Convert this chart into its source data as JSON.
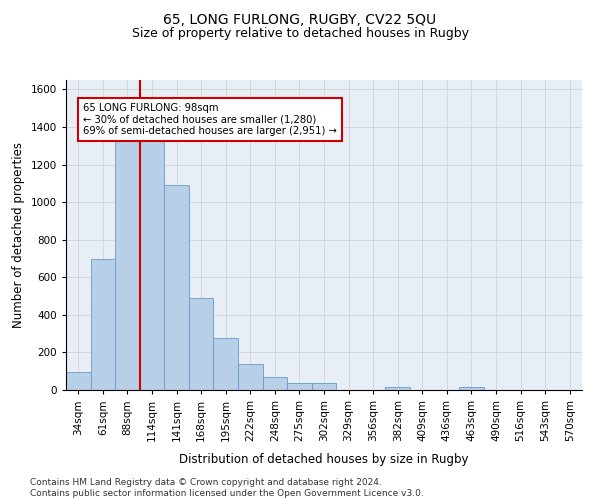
{
  "title": "65, LONG FURLONG, RUGBY, CV22 5QU",
  "subtitle": "Size of property relative to detached houses in Rugby",
  "xlabel": "Distribution of detached houses by size in Rugby",
  "ylabel": "Number of detached properties",
  "footer": "Contains HM Land Registry data © Crown copyright and database right 2024.\nContains public sector information licensed under the Open Government Licence v3.0.",
  "bar_labels": [
    "34sqm",
    "61sqm",
    "88sqm",
    "114sqm",
    "141sqm",
    "168sqm",
    "195sqm",
    "222sqm",
    "248sqm",
    "275sqm",
    "302sqm",
    "329sqm",
    "356sqm",
    "382sqm",
    "409sqm",
    "436sqm",
    "463sqm",
    "490sqm",
    "516sqm",
    "543sqm",
    "570sqm"
  ],
  "bar_values": [
    97,
    697,
    1325,
    1325,
    1093,
    490,
    275,
    137,
    70,
    35,
    35,
    0,
    0,
    17,
    0,
    0,
    17,
    0,
    0,
    0,
    0
  ],
  "bar_color": "#b8cfe8",
  "bar_edge_color": "#6699cc",
  "highlight_index": 2,
  "highlight_color": "#cc0000",
  "annotation_line1": "65 LONG FURLONG: 98sqm",
  "annotation_line2": "← 30% of detached houses are smaller (1,280)",
  "annotation_line3": "69% of semi-detached houses are larger (2,951) →",
  "annotation_box_color": "#cc0000",
  "ylim": [
    0,
    1650
  ],
  "yticks": [
    0,
    200,
    400,
    600,
    800,
    1000,
    1200,
    1400,
    1600
  ],
  "grid_color": "#cccccc",
  "bg_color": "#e8eef5",
  "title_fontsize": 10,
  "subtitle_fontsize": 9,
  "axis_label_fontsize": 8.5,
  "tick_fontsize": 7.5,
  "footer_fontsize": 6.5
}
